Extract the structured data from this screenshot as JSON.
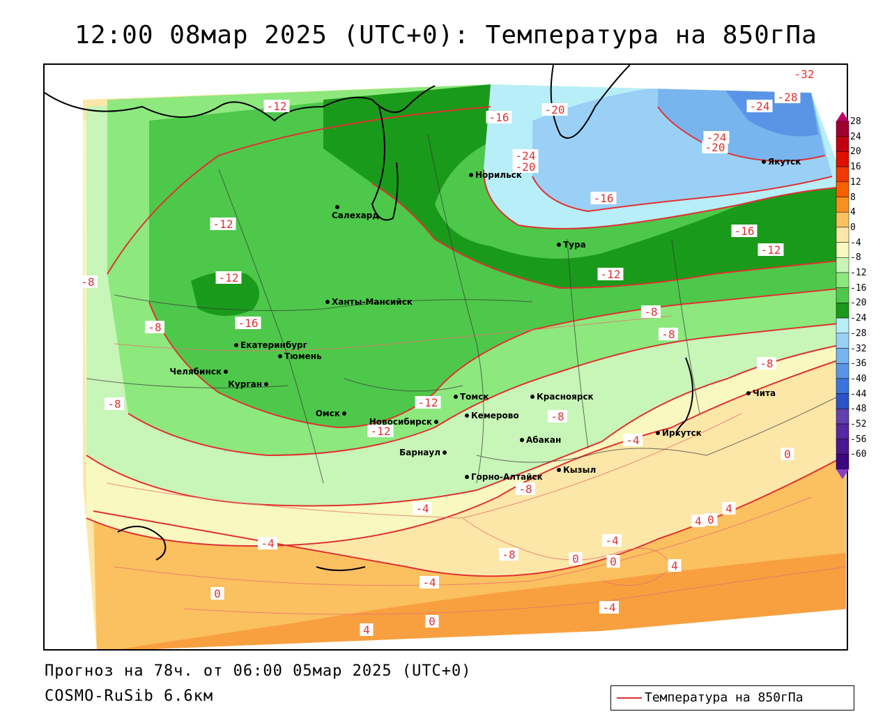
{
  "title": "12:00 08мар 2025 (UTC+0): Температура на 850гПа",
  "footer": {
    "forecast": "Прогноз на 78ч. от 06:00 05мар 2025 (UTC+0)",
    "model": "COSMO-RuSib 6.6км"
  },
  "legend": {
    "label": "Температура на 850гПа",
    "line_color": "#e03030"
  },
  "colorbar": {
    "labels": [
      "28",
      "24",
      "20",
      "16",
      "12",
      "8",
      "4",
      "0",
      "-4",
      "-8",
      "-12",
      "-16",
      "-20",
      "-24",
      "-28",
      "-32",
      "-36",
      "-40",
      "-44",
      "-48",
      "-52",
      "-56",
      "-60"
    ],
    "colors": [
      "#a00030",
      "#c00010",
      "#e01000",
      "#f03800",
      "#f86000",
      "#f89020",
      "#fbc060",
      "#fde7a8",
      "#f8f8c0",
      "#c8f5b8",
      "#8de87e",
      "#4ec84a",
      "#1a9a1a",
      "#b8eef8",
      "#9ad0f6",
      "#78b4ee",
      "#5a94e6",
      "#3a74dc",
      "#2a54c8",
      "#6040b0",
      "#5428a0",
      "#481890",
      "#3c0880"
    ]
  },
  "cities": [
    {
      "name": "Норильск"
    },
    {
      "name": "Салехард"
    },
    {
      "name": "Якутск"
    },
    {
      "name": "Тура"
    },
    {
      "name": "Ханты-Мансийск"
    },
    {
      "name": "Екатеринбург"
    },
    {
      "name": "Тюмень"
    },
    {
      "name": "Челябинск"
    },
    {
      "name": "Курган"
    },
    {
      "name": "Омск"
    },
    {
      "name": "Новосибирск"
    },
    {
      "name": "Томск"
    },
    {
      "name": "Кемерово"
    },
    {
      "name": "Красноярск"
    },
    {
      "name": "Барнаул"
    },
    {
      "name": "Абакан"
    },
    {
      "name": "Горно-Алтайск"
    },
    {
      "name": "Кызыл"
    },
    {
      "name": "Иркутск"
    },
    {
      "name": "Чита"
    }
  ],
  "isotherm_labels": [
    "-12",
    "-16",
    "-20",
    "-24",
    "-28",
    "-32",
    "-24",
    "-20",
    "-24",
    "-20",
    "-16",
    "-16",
    "-12",
    "-12",
    "-12",
    "-8",
    "-8",
    "-8",
    "-4",
    "-8",
    "-12",
    "-12",
    "-16",
    "-12",
    "-8",
    "-8",
    "-8",
    "-4",
    "-8",
    "-4",
    "0",
    "4",
    "4",
    "4",
    "4",
    "0",
    "-4",
    "0",
    "-4",
    "0",
    "-4",
    "-8",
    "0",
    "0"
  ]
}
